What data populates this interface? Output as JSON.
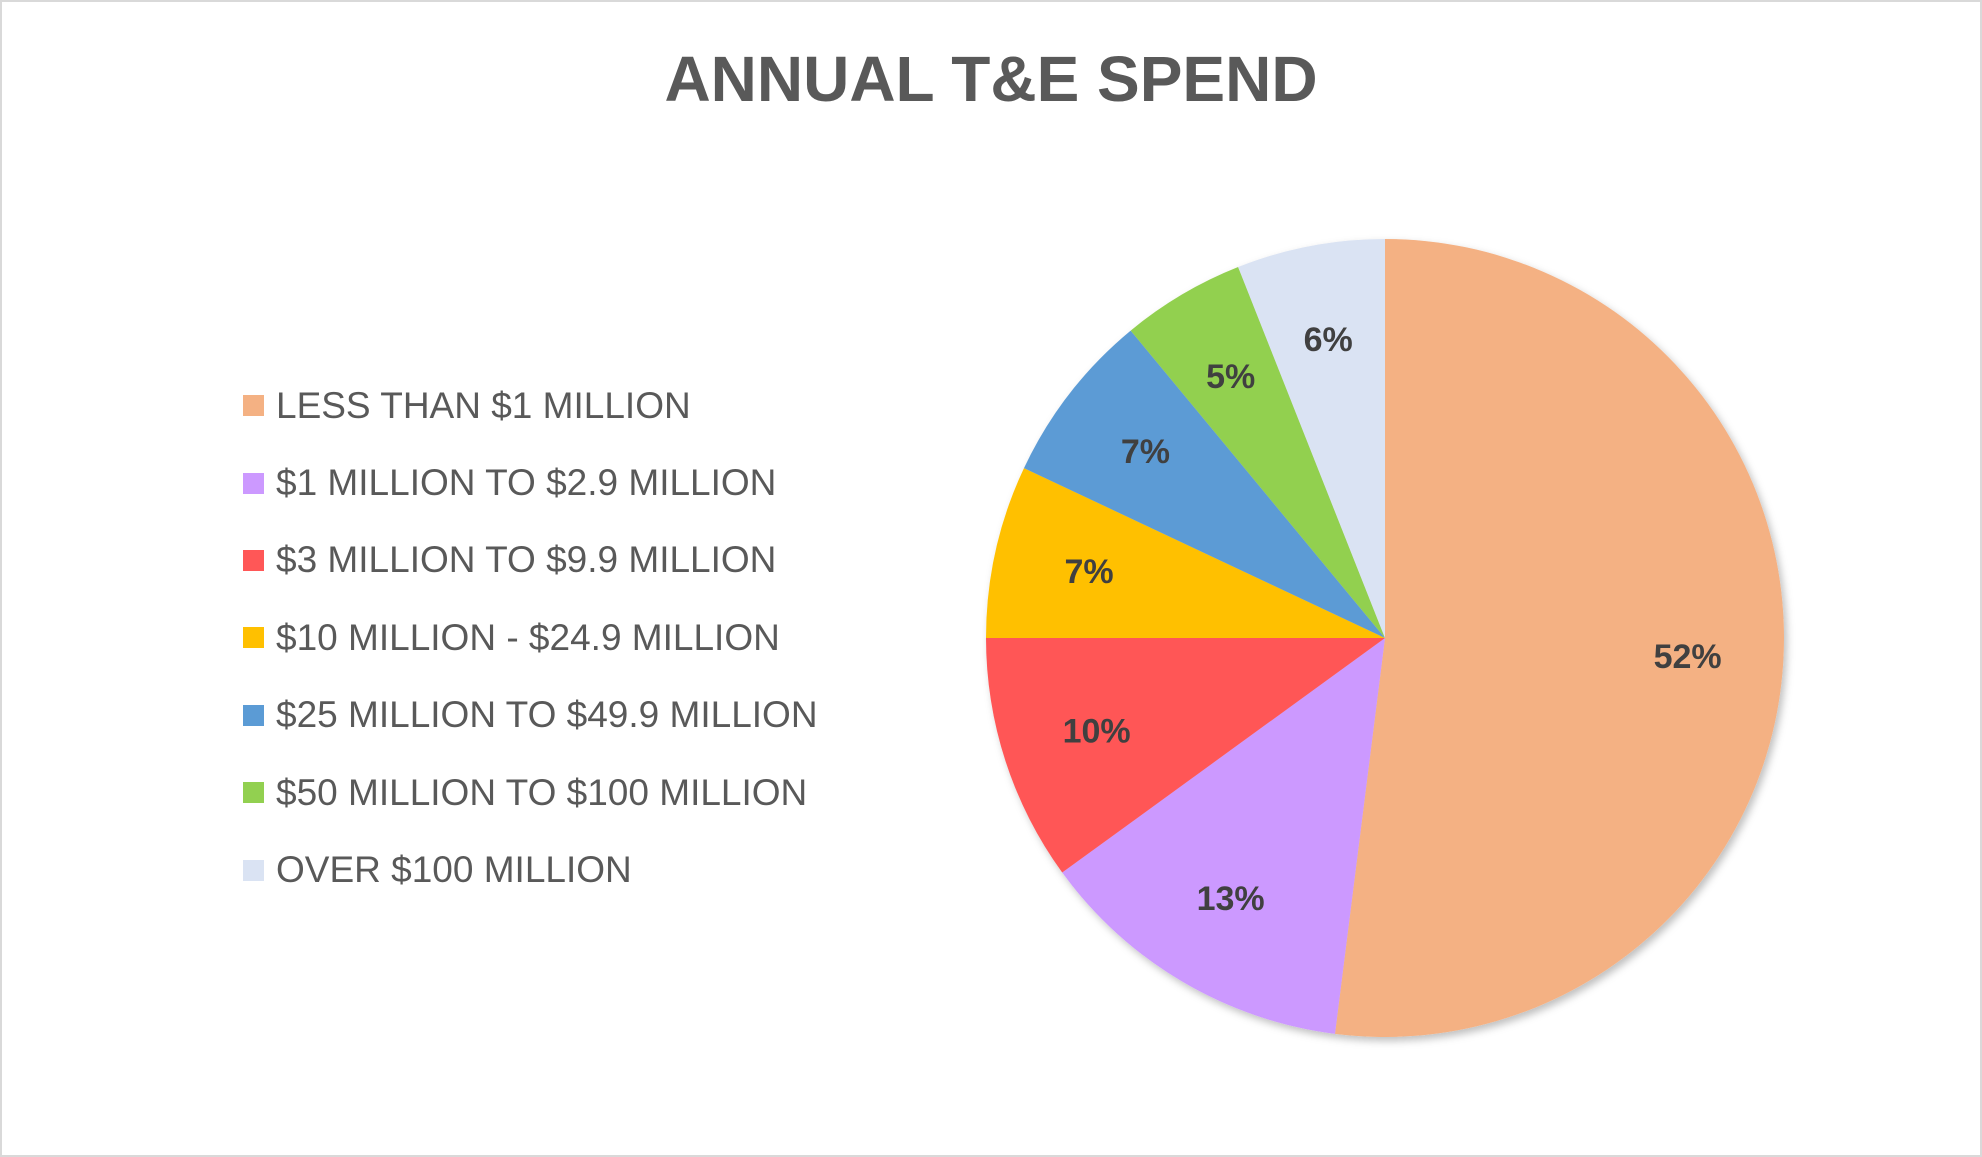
{
  "chart_data": {
    "type": "pie",
    "title": "ANNUAL T&E SPEND",
    "legend_position": "left",
    "start_angle_deg": 0,
    "direction": "clockwise",
    "slices": [
      {
        "label": "LESS THAN $1 MILLION",
        "value": 52,
        "display": "52%",
        "color": "#F4B183"
      },
      {
        "label": "$1 MILLION TO $2.9 MILLION",
        "value": 13,
        "display": "13%",
        "color": "#CC99FF"
      },
      {
        "label": "$3 MILLION TO $9.9 MILLION",
        "value": 10,
        "display": "10%",
        "color": "#FF5757"
      },
      {
        "label": "$10 MILLION - $24.9 MILLION",
        "value": 7,
        "display": "7%",
        "color": "#FFC000"
      },
      {
        "label": "$25 MILLION TO $49.9 MILLION",
        "value": 7,
        "display": "7%",
        "color": "#5B9BD5"
      },
      {
        "label": "$50 MILLION TO $100 MILLION",
        "value": 5,
        "display": "5%",
        "color": "#92D050"
      },
      {
        "label": "OVER $100 MILLION",
        "value": 6,
        "display": "6%",
        "color": "#DAE3F3"
      }
    ]
  }
}
